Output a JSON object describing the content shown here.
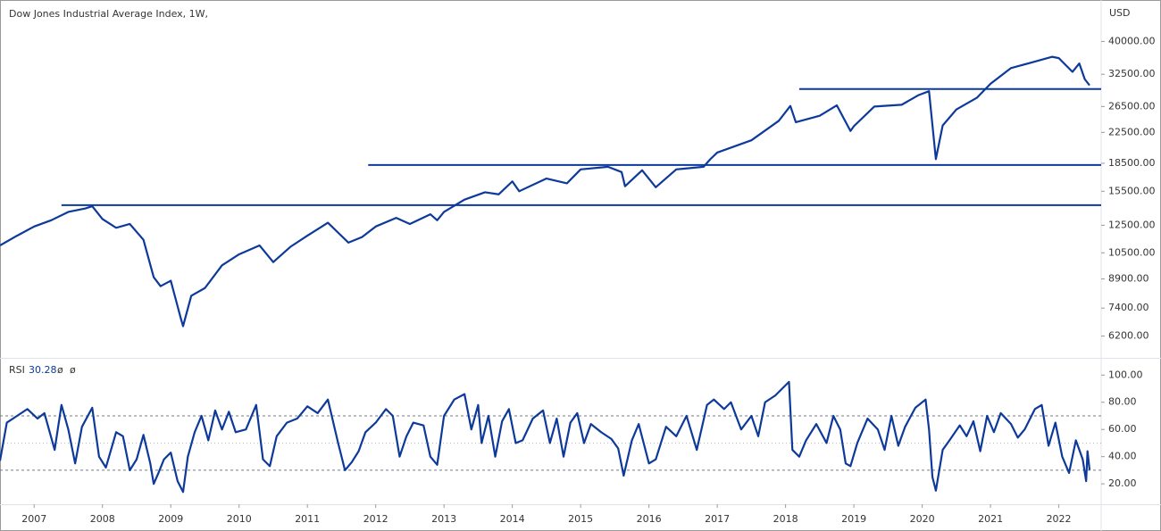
{
  "chart_data": [
    {
      "type": "line",
      "title": "Dow Jones Industrial Average Index, 1W,",
      "y_unit": "USD",
      "log_scale": true,
      "color": "#0d3a9a",
      "xlim": [
        2006.5,
        2022.62
      ],
      "ylim": [
        5400,
        52000
      ],
      "yticks": [
        {
          "value": 40000,
          "label": "40000.00"
        },
        {
          "value": 32500,
          "label": "32500.00"
        },
        {
          "value": 26500,
          "label": "26500.00"
        },
        {
          "value": 22500,
          "label": "22500.00"
        },
        {
          "value": 18500,
          "label": "18500.00"
        },
        {
          "value": 15500,
          "label": "15500.00"
        },
        {
          "value": 12500,
          "label": "12500.00"
        },
        {
          "value": 10500,
          "label": "10500.00"
        },
        {
          "value": 8900,
          "label": "8900.00"
        },
        {
          "value": 7400,
          "label": "7400.00"
        },
        {
          "value": 6200,
          "label": "6200.00"
        }
      ],
      "levels": [
        {
          "x": 2007.4,
          "value": 14200
        },
        {
          "x": 2011.89,
          "value": 18300
        },
        {
          "x": 2018.2,
          "value": 29600
        }
      ],
      "x": [
        2006.5,
        2006.75,
        2007.0,
        2007.25,
        2007.5,
        2007.75,
        2007.85,
        2008.0,
        2008.2,
        2008.4,
        2008.6,
        2008.75,
        2008.85,
        2009.0,
        2009.15,
        2009.18,
        2009.3,
        2009.5,
        2009.75,
        2010.0,
        2010.3,
        2010.5,
        2010.75,
        2011.0,
        2011.3,
        2011.6,
        2011.8,
        2012.0,
        2012.3,
        2012.5,
        2012.8,
        2012.9,
        2013.0,
        2013.3,
        2013.6,
        2013.8,
        2014.0,
        2014.1,
        2014.5,
        2014.8,
        2015.0,
        2015.4,
        2015.6,
        2015.65,
        2015.9,
        2016.1,
        2016.4,
        2016.8,
        2016.9,
        2017.0,
        2017.5,
        2017.9,
        2018.07,
        2018.15,
        2018.5,
        2018.75,
        2018.95,
        2019.0,
        2019.3,
        2019.7,
        2019.95,
        2020.1,
        2020.2,
        2020.3,
        2020.5,
        2020.8,
        2021.0,
        2021.3,
        2021.6,
        2021.9,
        2022.0,
        2022.2,
        2022.3,
        2022.38,
        2022.45
      ],
      "values": [
        11000,
        11700,
        12400,
        12900,
        13600,
        13900,
        14100,
        13000,
        12300,
        12600,
        11400,
        9000,
        8500,
        8800,
        6900,
        6600,
        8000,
        8400,
        9700,
        10400,
        11000,
        9900,
        10900,
        11700,
        12700,
        11200,
        11600,
        12400,
        13100,
        12600,
        13400,
        12900,
        13600,
        14700,
        15400,
        15200,
        16500,
        15500,
        16800,
        16300,
        17800,
        18100,
        17500,
        16000,
        17700,
        15900,
        17800,
        18100,
        19000,
        19800,
        21400,
        24200,
        26600,
        24000,
        25000,
        26700,
        22700,
        23400,
        26500,
        26800,
        28500,
        29200,
        19000,
        23500,
        26000,
        28000,
        30600,
        33800,
        35000,
        36300,
        36000,
        33000,
        34800,
        31500,
        30300
      ]
    },
    {
      "type": "line",
      "title": "RSI",
      "last_value": 30.28,
      "inputs": [
        "ø",
        "ø"
      ],
      "color": "#0d3a9a",
      "xlim": [
        2006.5,
        2022.62
      ],
      "ylim": [
        5,
        112
      ],
      "yticks": [
        {
          "value": 100,
          "label": "100.00"
        },
        {
          "value": 80,
          "label": "80.00"
        },
        {
          "value": 60,
          "label": "60.00"
        },
        {
          "value": 40,
          "label": "40.00"
        },
        {
          "value": 20,
          "label": "20.00"
        }
      ],
      "bands": [
        70,
        50,
        30
      ],
      "xticks": [
        2007,
        2008,
        2009,
        2010,
        2011,
        2012,
        2013,
        2014,
        2015,
        2016,
        2017,
        2018,
        2019,
        2020,
        2021,
        2022
      ],
      "x": [
        2006.5,
        2006.6,
        2006.75,
        2006.9,
        2007.05,
        2007.15,
        2007.3,
        2007.4,
        2007.5,
        2007.6,
        2007.7,
        2007.85,
        2007.95,
        2008.05,
        2008.2,
        2008.3,
        2008.4,
        2008.5,
        2008.6,
        2008.7,
        2008.75,
        2008.82,
        2008.9,
        2009.0,
        2009.1,
        2009.18,
        2009.25,
        2009.35,
        2009.45,
        2009.55,
        2009.65,
        2009.75,
        2009.85,
        2009.95,
        2010.1,
        2010.25,
        2010.35,
        2010.45,
        2010.55,
        2010.7,
        2010.85,
        2011.0,
        2011.15,
        2011.3,
        2011.45,
        2011.55,
        2011.65,
        2011.75,
        2011.85,
        2012.0,
        2012.15,
        2012.25,
        2012.35,
        2012.45,
        2012.55,
        2012.7,
        2012.8,
        2012.9,
        2013.0,
        2013.15,
        2013.3,
        2013.4,
        2013.5,
        2013.55,
        2013.65,
        2013.75,
        2013.85,
        2013.95,
        2014.05,
        2014.15,
        2014.3,
        2014.45,
        2014.55,
        2014.65,
        2014.75,
        2014.85,
        2014.95,
        2015.05,
        2015.15,
        2015.3,
        2015.45,
        2015.55,
        2015.63,
        2015.75,
        2015.85,
        2016.0,
        2016.1,
        2016.25,
        2016.4,
        2016.55,
        2016.7,
        2016.85,
        2016.95,
        2017.1,
        2017.2,
        2017.35,
        2017.5,
        2017.6,
        2017.7,
        2017.85,
        2017.95,
        2018.05,
        2018.1,
        2018.2,
        2018.3,
        2018.45,
        2018.6,
        2018.7,
        2018.8,
        2018.88,
        2018.95,
        2019.05,
        2019.2,
        2019.35,
        2019.45,
        2019.55,
        2019.65,
        2019.75,
        2019.9,
        2020.05,
        2020.1,
        2020.15,
        2020.2,
        2020.3,
        2020.4,
        2020.55,
        2020.65,
        2020.75,
        2020.85,
        2020.95,
        2021.05,
        2021.15,
        2021.3,
        2021.4,
        2021.5,
        2021.65,
        2021.75,
        2021.85,
        2021.95,
        2022.05,
        2022.15,
        2022.25,
        2022.35,
        2022.4,
        2022.42,
        2022.45
      ],
      "values": [
        37,
        65,
        70,
        75,
        68,
        72,
        45,
        78,
        60,
        35,
        62,
        76,
        40,
        32,
        58,
        55,
        30,
        38,
        56,
        35,
        20,
        28,
        38,
        43,
        22,
        14,
        40,
        58,
        70,
        52,
        74,
        60,
        73,
        58,
        60,
        78,
        38,
        33,
        55,
        65,
        68,
        77,
        72,
        82,
        50,
        30,
        36,
        44,
        58,
        65,
        75,
        70,
        40,
        55,
        65,
        63,
        40,
        34,
        70,
        82,
        86,
        60,
        78,
        50,
        70,
        40,
        66,
        75,
        50,
        52,
        68,
        74,
        50,
        68,
        40,
        65,
        72,
        50,
        64,
        58,
        53,
        46,
        26,
        52,
        64,
        35,
        38,
        62,
        55,
        70,
        45,
        78,
        82,
        75,
        80,
        60,
        70,
        55,
        80,
        85,
        90,
        95,
        45,
        40,
        52,
        64,
        50,
        70,
        60,
        35,
        33,
        50,
        68,
        60,
        45,
        70,
        48,
        62,
        76,
        82,
        60,
        25,
        15,
        45,
        52,
        63,
        55,
        66,
        44,
        70,
        58,
        72,
        64,
        54,
        60,
        75,
        78,
        48,
        65,
        40,
        28,
        52,
        38,
        22,
        44,
        30.28
      ]
    }
  ]
}
